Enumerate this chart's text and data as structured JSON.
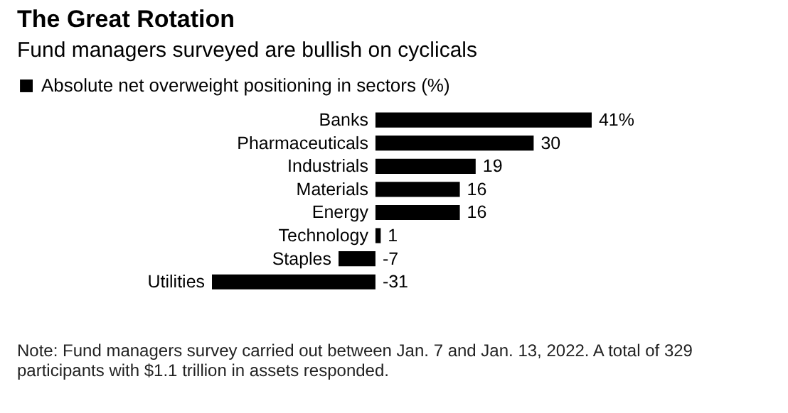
{
  "chart_data": {
    "type": "bar",
    "orientation": "horizontal",
    "title": "The Great Rotation",
    "subtitle": "Fund managers surveyed are bullish on cyclicals",
    "categories": [
      "Banks",
      "Pharmaceuticals",
      "Industrials",
      "Materials",
      "Energy",
      "Technology",
      "Staples",
      "Utilities"
    ],
    "series": [
      {
        "name": "Absolute net overweight positioning in sectors (%)",
        "color": "#000000",
        "values": [
          41,
          30,
          19,
          16,
          16,
          1,
          -7,
          -31
        ],
        "value_labels": [
          "41%",
          "30",
          "19",
          "16",
          "16",
          "1",
          "-7",
          "-31"
        ]
      }
    ],
    "legend": "top left",
    "annotations": [
      "Note: Fund managers survey carried out between Jan. 7 and Jan. 13, 2022. A total of 329 participants with $1.1 trillion in assets responded."
    ]
  }
}
